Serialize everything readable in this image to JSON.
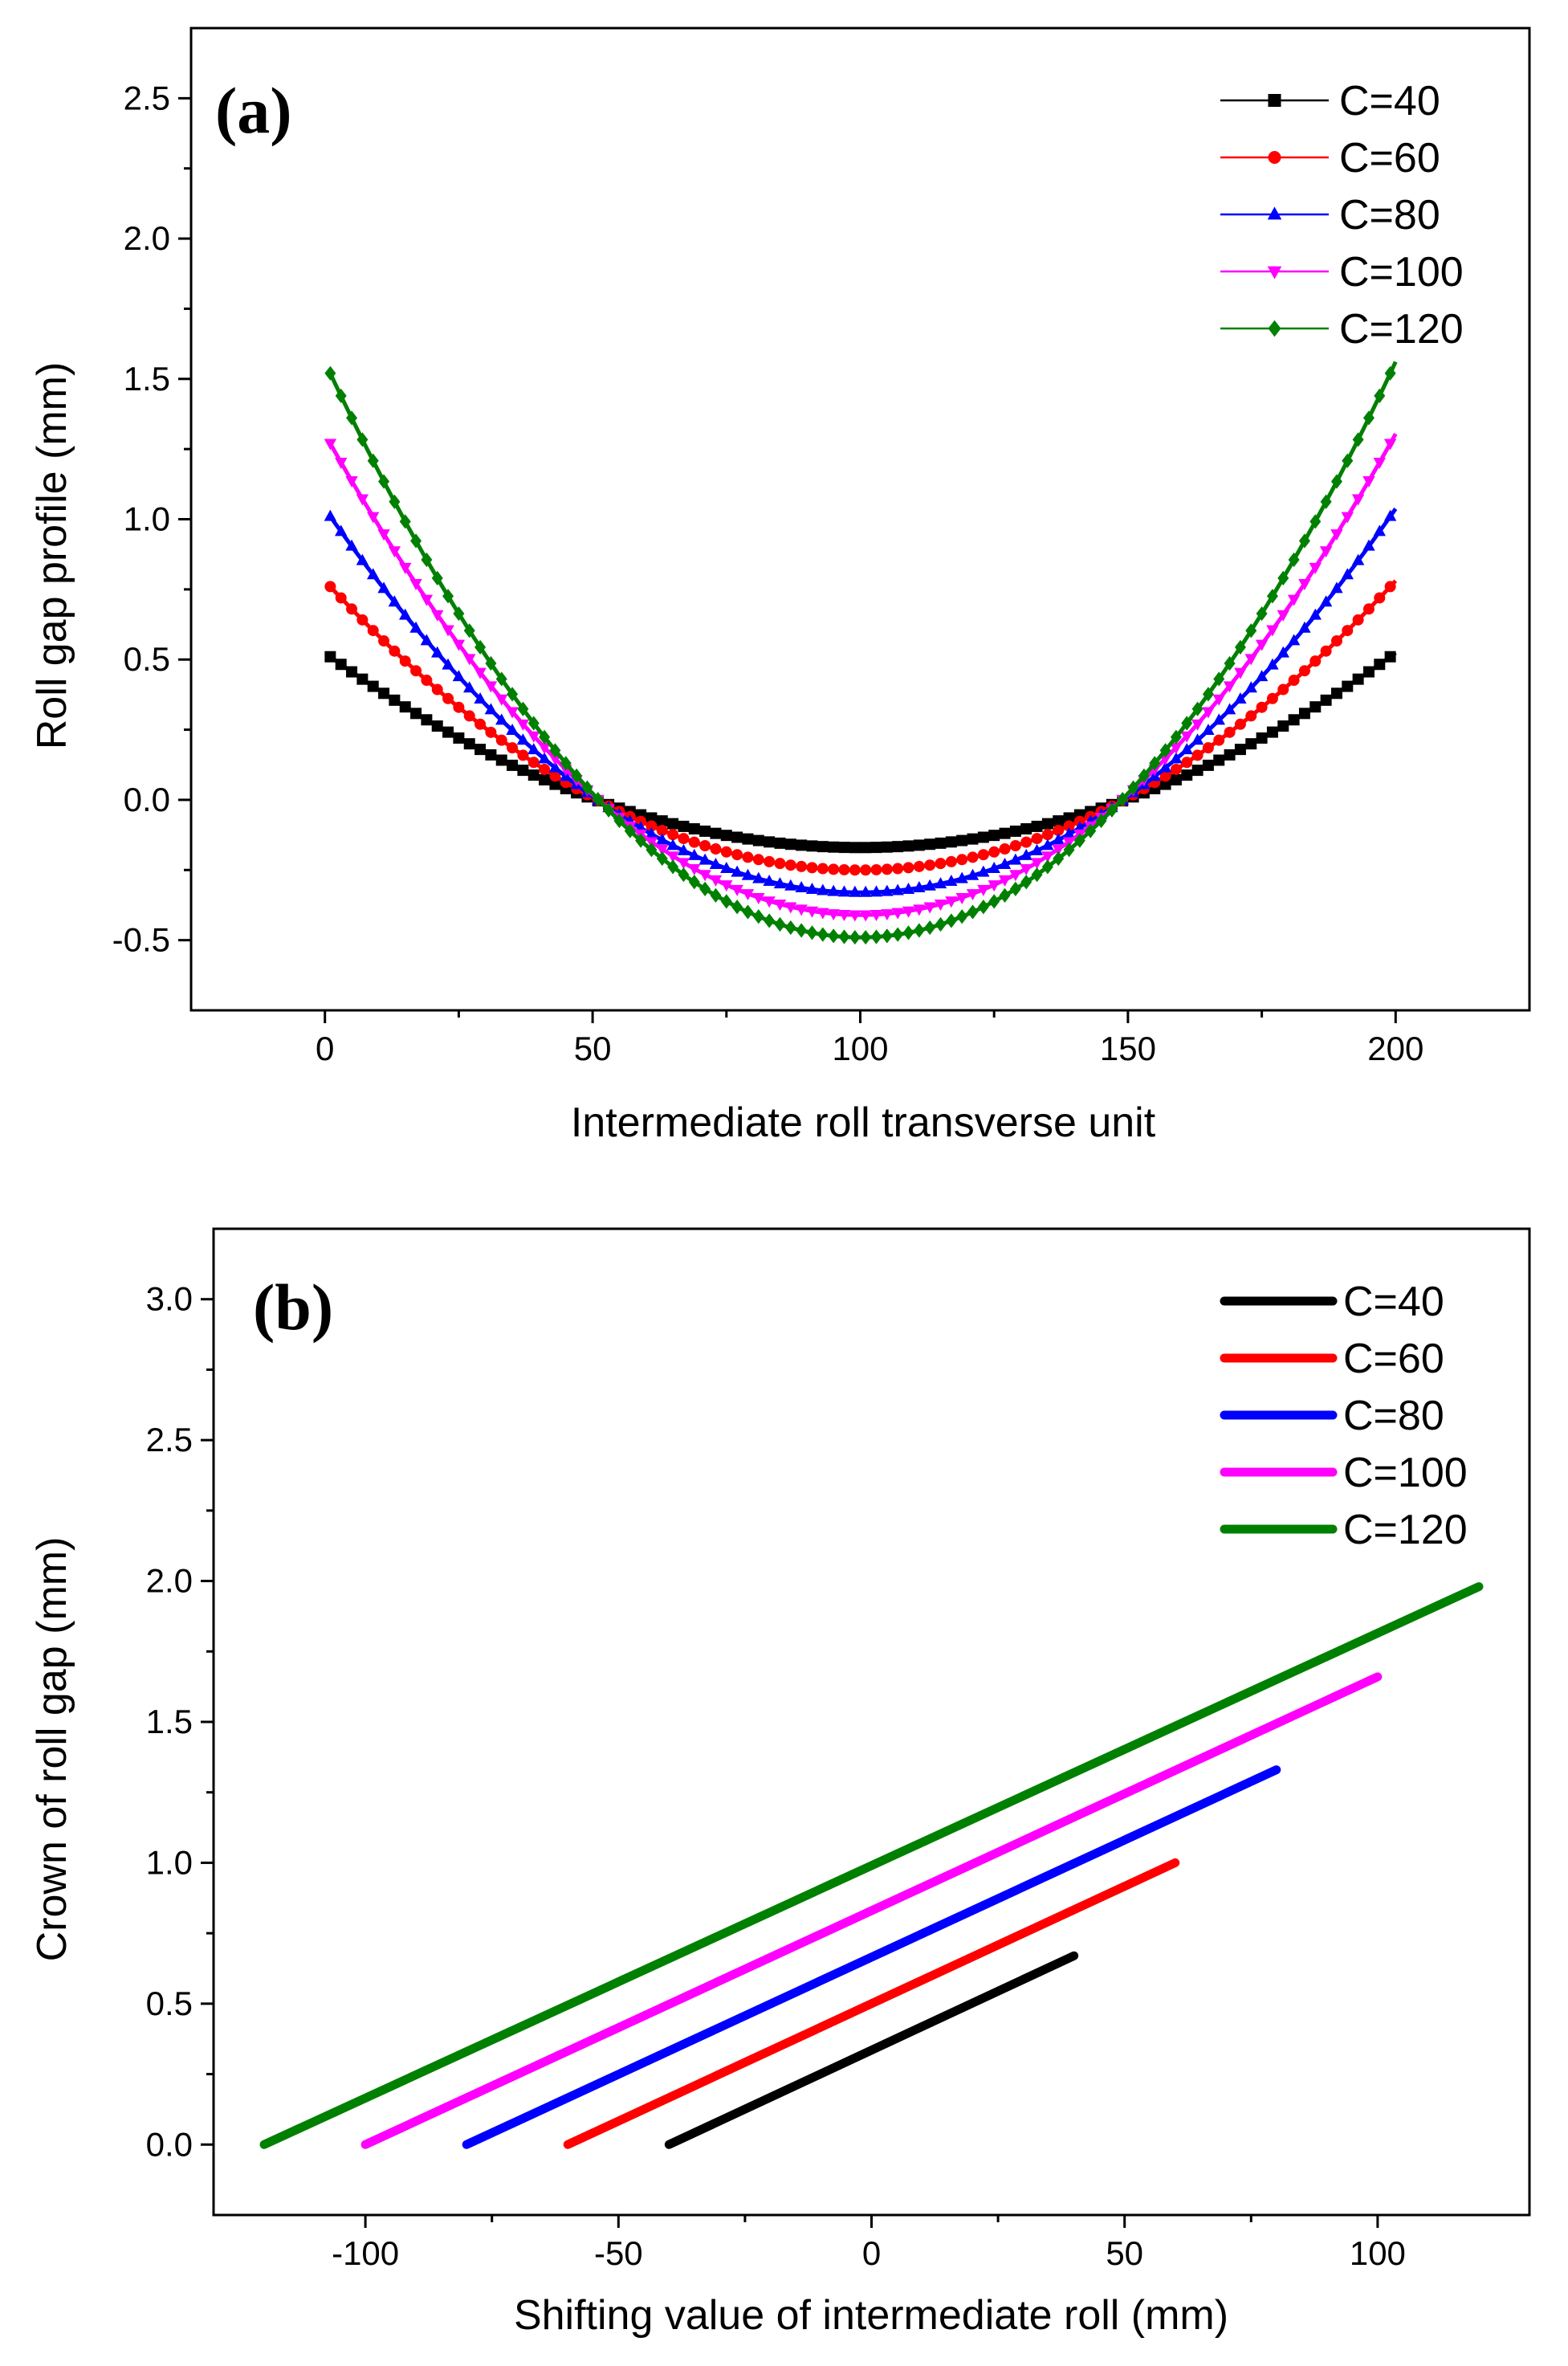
{
  "chart_data": [
    {
      "type": "line",
      "panel_label": "(a)",
      "xlabel": "Intermediate roll transverse unit",
      "ylabel": "Roll gap profile (mm)",
      "xlim": [
        -25,
        225
      ],
      "ylim": [
        -0.75,
        2.75
      ],
      "xticks": [
        0,
        50,
        100,
        150,
        200
      ],
      "xtick_labels": [
        "0",
        "50",
        "100",
        "150",
        "200"
      ],
      "yticks": [
        -0.5,
        0.0,
        0.5,
        1.0,
        1.5,
        2.0,
        2.5
      ],
      "ytick_labels": [
        "-0.5",
        "0.0",
        "0.5",
        "1.0",
        "1.5",
        "2.0",
        "2.5"
      ],
      "x_range": [
        1,
        200
      ],
      "legend_position": "top-right",
      "series": [
        {
          "name": "C=40",
          "color": "#000000",
          "marker": "square",
          "x_samples": [
            1,
            20,
            40,
            55,
            70,
            85,
            100,
            115,
            130,
            145,
            160,
            180,
            200
          ],
          "values": [
            0.51,
            0.31,
            0.14,
            0.02,
            -0.09,
            -0.15,
            -0.17,
            -0.15,
            -0.09,
            0.0,
            0.12,
            0.29,
            0.51
          ]
        },
        {
          "name": "C=60",
          "color": "#ff0000",
          "marker": "circle",
          "x_samples": [
            1,
            20,
            40,
            55,
            70,
            85,
            100,
            115,
            130,
            145,
            160,
            180,
            200
          ],
          "values": [
            0.76,
            0.47,
            0.21,
            0.03,
            -0.13,
            -0.22,
            -0.25,
            -0.22,
            -0.13,
            0.0,
            0.18,
            0.44,
            0.76
          ]
        },
        {
          "name": "C=80",
          "color": "#0000ff",
          "marker": "triangle-up",
          "x_samples": [
            1,
            20,
            40,
            55,
            70,
            85,
            100,
            115,
            130,
            145,
            160,
            180,
            200
          ],
          "values": [
            1.01,
            0.63,
            0.28,
            0.04,
            -0.17,
            -0.29,
            -0.33,
            -0.29,
            -0.17,
            0.0,
            0.24,
            0.58,
            1.01
          ]
        },
        {
          "name": "C=100",
          "color": "#ff00ff",
          "marker": "triangle-down",
          "x_samples": [
            1,
            20,
            40,
            55,
            70,
            85,
            100,
            115,
            130,
            145,
            160,
            180,
            200
          ],
          "values": [
            1.27,
            0.78,
            0.35,
            0.05,
            -0.21,
            -0.37,
            -0.41,
            -0.37,
            -0.21,
            0.0,
            0.3,
            0.73,
            1.27
          ]
        },
        {
          "name": "C=120",
          "color": "#008000",
          "marker": "diamond",
          "x_samples": [
            1,
            20,
            40,
            55,
            70,
            85,
            100,
            115,
            130,
            145,
            160,
            180,
            200
          ],
          "values": [
            1.52,
            0.94,
            0.42,
            0.06,
            -0.25,
            -0.44,
            -0.49,
            -0.44,
            -0.25,
            0.0,
            0.36,
            0.88,
            1.52
          ]
        }
      ]
    },
    {
      "type": "line",
      "panel_label": "(b)",
      "xlabel": "Shifting value of intermediate roll (mm)",
      "ylabel": "Crown of roll gap (mm)",
      "xlim": [
        -130,
        130
      ],
      "ylim": [
        -0.25,
        3.25
      ],
      "xticks": [
        -100,
        -50,
        0,
        50,
        100
      ],
      "xtick_labels": [
        "-100",
        "-50",
        "0",
        "50",
        "100"
      ],
      "yticks": [
        0.0,
        0.5,
        1.0,
        1.5,
        2.0,
        2.5,
        3.0
      ],
      "ytick_labels": [
        "0.0",
        "0.5",
        "1.0",
        "1.5",
        "2.0",
        "2.5",
        "3.0"
      ],
      "legend_position": "top-right",
      "series": [
        {
          "name": "C=40",
          "color": "#000000",
          "x": [
            -40,
            40
          ],
          "values": [
            0.0,
            0.67
          ]
        },
        {
          "name": "C=60",
          "color": "#ff0000",
          "x": [
            -60,
            60
          ],
          "values": [
            0.0,
            1.0
          ]
        },
        {
          "name": "C=80",
          "color": "#0000ff",
          "x": [
            -80,
            80
          ],
          "values": [
            0.0,
            1.33
          ]
        },
        {
          "name": "C=100",
          "color": "#ff00ff",
          "x": [
            -100,
            100
          ],
          "values": [
            0.0,
            1.66
          ]
        },
        {
          "name": "C=120",
          "color": "#008000",
          "x": [
            -120,
            120
          ],
          "values": [
            0.0,
            1.98
          ]
        }
      ]
    }
  ]
}
